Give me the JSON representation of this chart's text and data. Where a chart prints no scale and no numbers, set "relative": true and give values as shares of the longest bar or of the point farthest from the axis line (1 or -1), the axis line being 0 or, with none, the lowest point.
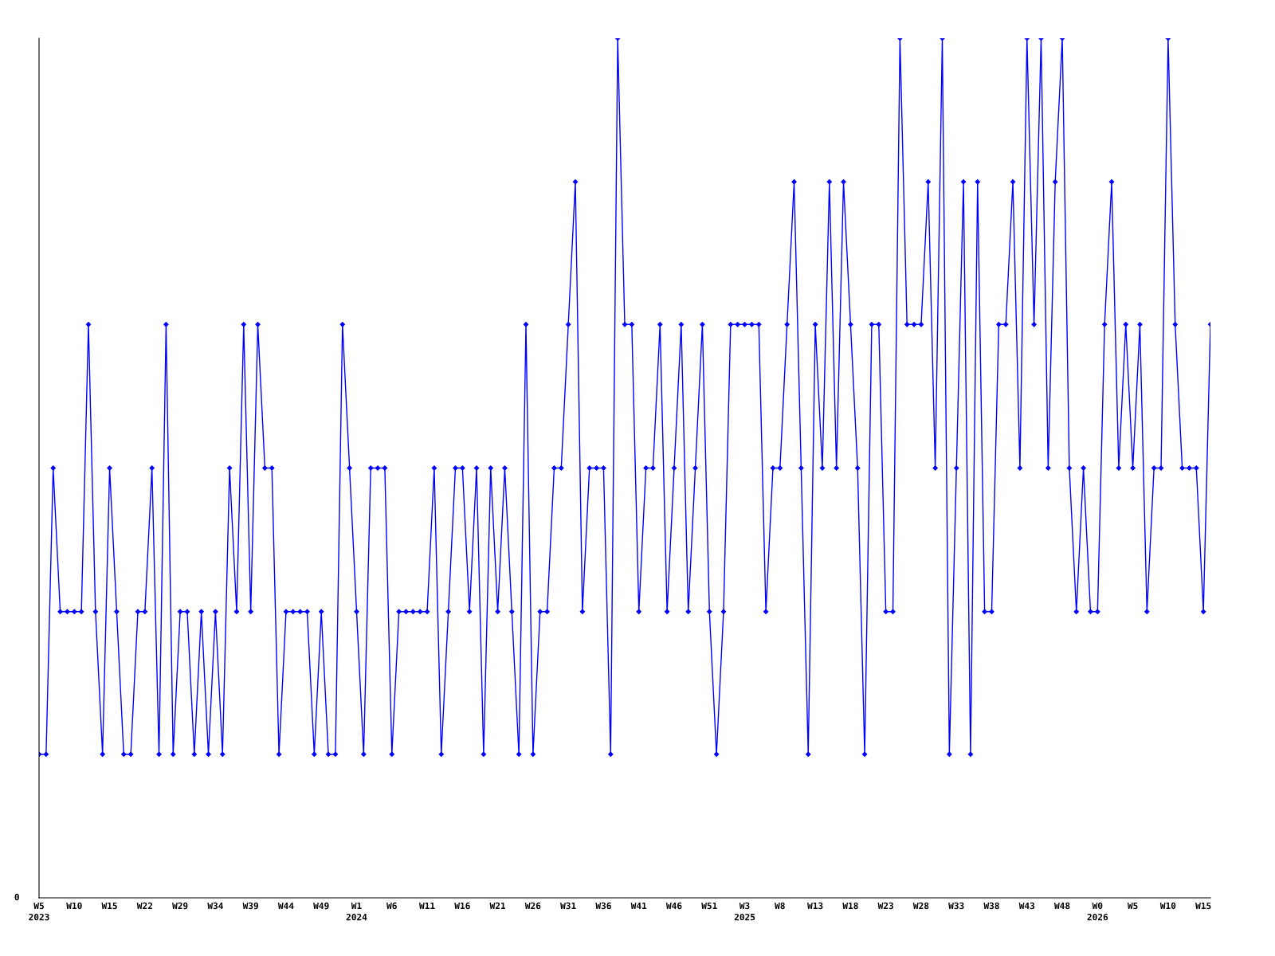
{
  "chart_data": {
    "type": "line",
    "relative": true,
    "marker": "diamond",
    "grid": false,
    "legend": false,
    "annotations": [
      "0"
    ],
    "categories": [
      "W5\n2023",
      null,
      null,
      null,
      null,
      "W10",
      null,
      null,
      null,
      null,
      "W15",
      null,
      null,
      null,
      null,
      "W22",
      null,
      null,
      null,
      null,
      "W29",
      null,
      null,
      null,
      null,
      "W34",
      null,
      null,
      null,
      null,
      "W39",
      null,
      null,
      null,
      null,
      "W44",
      null,
      null,
      null,
      null,
      "W49",
      null,
      null,
      null,
      null,
      "W1\n2024",
      null,
      null,
      null,
      null,
      "W6",
      null,
      null,
      null,
      null,
      "W11",
      null,
      null,
      null,
      null,
      "W16",
      null,
      null,
      null,
      null,
      "W21",
      null,
      null,
      null,
      null,
      "W26",
      null,
      null,
      null,
      null,
      "W31",
      null,
      null,
      null,
      null,
      "W36",
      null,
      null,
      null,
      null,
      "W41",
      null,
      null,
      null,
      null,
      "W46",
      null,
      null,
      null,
      null,
      "W51",
      null,
      null,
      null,
      null,
      "W3\n2025",
      null,
      null,
      null,
      null,
      "W8",
      null,
      null,
      null,
      null,
      "W13",
      null,
      null,
      null,
      null,
      "W18",
      null,
      null,
      null,
      null,
      "W23",
      null,
      null,
      null,
      null,
      "W28",
      null,
      null,
      null,
      null,
      "W33",
      null,
      null,
      null,
      null,
      "W38",
      null,
      null,
      null,
      null,
      "W43",
      null,
      null,
      null,
      null,
      "W48",
      null,
      null,
      null,
      null,
      "W0\n2026",
      null,
      null,
      null,
      null,
      "W5",
      null,
      null,
      null,
      null,
      "W10",
      null,
      null,
      null,
      null,
      "W15",
      null
    ],
    "series": [
      {
        "color": "#0000ff",
        "values": [
          0.167,
          0.167,
          0.5,
          0.333,
          0.333,
          0.333,
          0.333,
          0.667,
          0.333,
          0.167,
          0.5,
          0.333,
          0.167,
          0.167,
          0.333,
          0.333,
          0.5,
          0.167,
          0.667,
          0.167,
          0.333,
          0.333,
          0.167,
          0.333,
          0.167,
          0.333,
          0.167,
          0.5,
          0.333,
          0.667,
          0.333,
          0.667,
          0.5,
          0.5,
          0.167,
          0.333,
          0.333,
          0.333,
          0.333,
          0.167,
          0.333,
          0.167,
          0.167,
          0.667,
          0.5,
          0.333,
          0.167,
          0.5,
          0.5,
          0.5,
          0.167,
          0.333,
          0.333,
          0.333,
          0.333,
          0.333,
          0.5,
          0.167,
          0.333,
          0.5,
          0.5,
          0.333,
          0.5,
          0.167,
          0.5,
          0.333,
          0.5,
          0.333,
          0.167,
          0.667,
          0.167,
          0.333,
          0.333,
          0.5,
          0.5,
          0.667,
          0.833,
          0.333,
          0.5,
          0.5,
          0.5,
          0.167,
          1,
          0.667,
          0.667,
          0.333,
          0.5,
          0.5,
          0.667,
          0.333,
          0.5,
          0.667,
          0.333,
          0.5,
          0.667,
          0.333,
          0.167,
          0.333,
          0.667,
          0.667,
          0.667,
          0.667,
          0.667,
          0.333,
          0.5,
          0.5,
          0.667,
          0.833,
          0.5,
          0.167,
          0.667,
          0.5,
          0.833,
          0.5,
          0.833,
          0.667,
          0.5,
          0.167,
          0.667,
          0.667,
          0.333,
          0.333,
          1,
          0.667,
          0.667,
          0.667,
          0.833,
          0.5,
          1,
          0.167,
          0.5,
          0.833,
          0.167,
          0.833,
          0.333,
          0.333,
          0.667,
          0.667,
          0.833,
          0.5,
          1,
          0.667,
          1,
          0.5,
          0.833,
          1,
          0.5,
          0.333,
          0.5,
          0.333,
          0.333,
          0.667,
          0.833,
          0.5,
          0.667,
          0.5,
          0.667,
          0.333,
          0.5,
          0.5,
          1,
          0.667,
          0.5,
          0.5,
          0.5,
          0.333,
          0.667
        ]
      }
    ]
  }
}
